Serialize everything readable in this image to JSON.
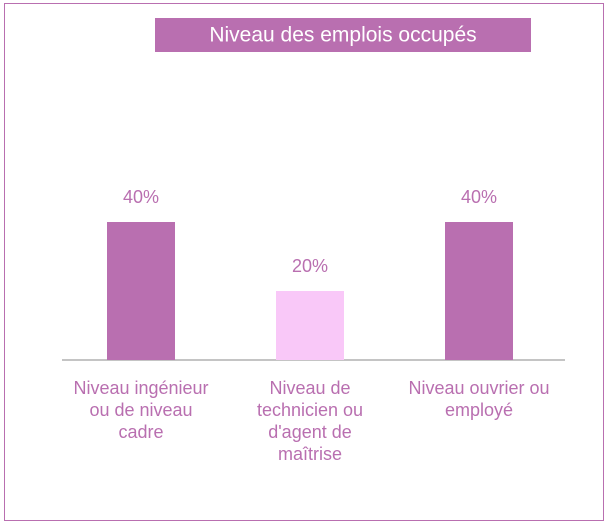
{
  "chart_data": {
    "type": "bar",
    "title": "Niveau des emplois occupés",
    "categories": [
      "Niveau ingénieur ou de niveau cadre",
      "Niveau de technicien ou d'agent de maîtrise",
      "Niveau ouvrier ou employé"
    ],
    "values": [
      40,
      20,
      40
    ],
    "value_labels": [
      "40%",
      "20%",
      "40%"
    ],
    "colors": [
      "#b96fb0",
      "#f9c8f8",
      "#b96fb0"
    ]
  }
}
